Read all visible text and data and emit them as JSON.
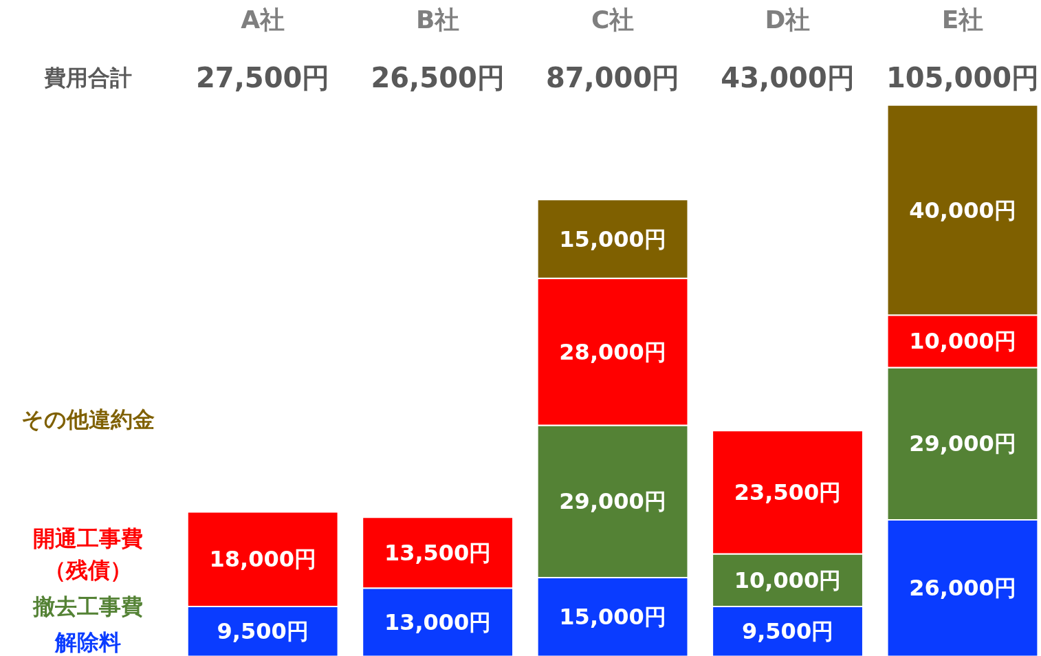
{
  "chart_data": {
    "type": "bar",
    "stacked": true,
    "legend": "left",
    "categories": [
      "A社",
      "B社",
      "C社",
      "D社",
      "E社"
    ],
    "series": [
      {
        "name": "解除料",
        "color": "#0a3cff",
        "values": [
          9500,
          13000,
          15000,
          9500,
          26000
        ],
        "value_labels": [
          "9,500円",
          "13,000円",
          "15,000円",
          "9,500円",
          "26,000円"
        ]
      },
      {
        "name": "撤去工事費",
        "color": "#548235",
        "values": [
          null,
          null,
          29000,
          10000,
          29000
        ],
        "value_labels": [
          null,
          null,
          "29,000円",
          "10,000円",
          "29,000円"
        ]
      },
      {
        "name": "開通工事費（残債）",
        "color": "#ff0000",
        "values": [
          18000,
          13500,
          28000,
          23500,
          10000
        ],
        "value_labels": [
          "18,000円",
          "13,500円",
          "28,000円",
          "23,500円",
          "10,000円"
        ]
      },
      {
        "name": "その他違約金",
        "color": "#7f6000",
        "values": [
          null,
          null,
          15000,
          null,
          40000
        ],
        "value_labels": [
          null,
          null,
          "15,000円",
          null,
          "40,000円"
        ]
      }
    ],
    "annotations": [
      "費用合計",
      "27,500円",
      "26,500円",
      "87,000円",
      "43,000円",
      "105,000円"
    ]
  }
}
